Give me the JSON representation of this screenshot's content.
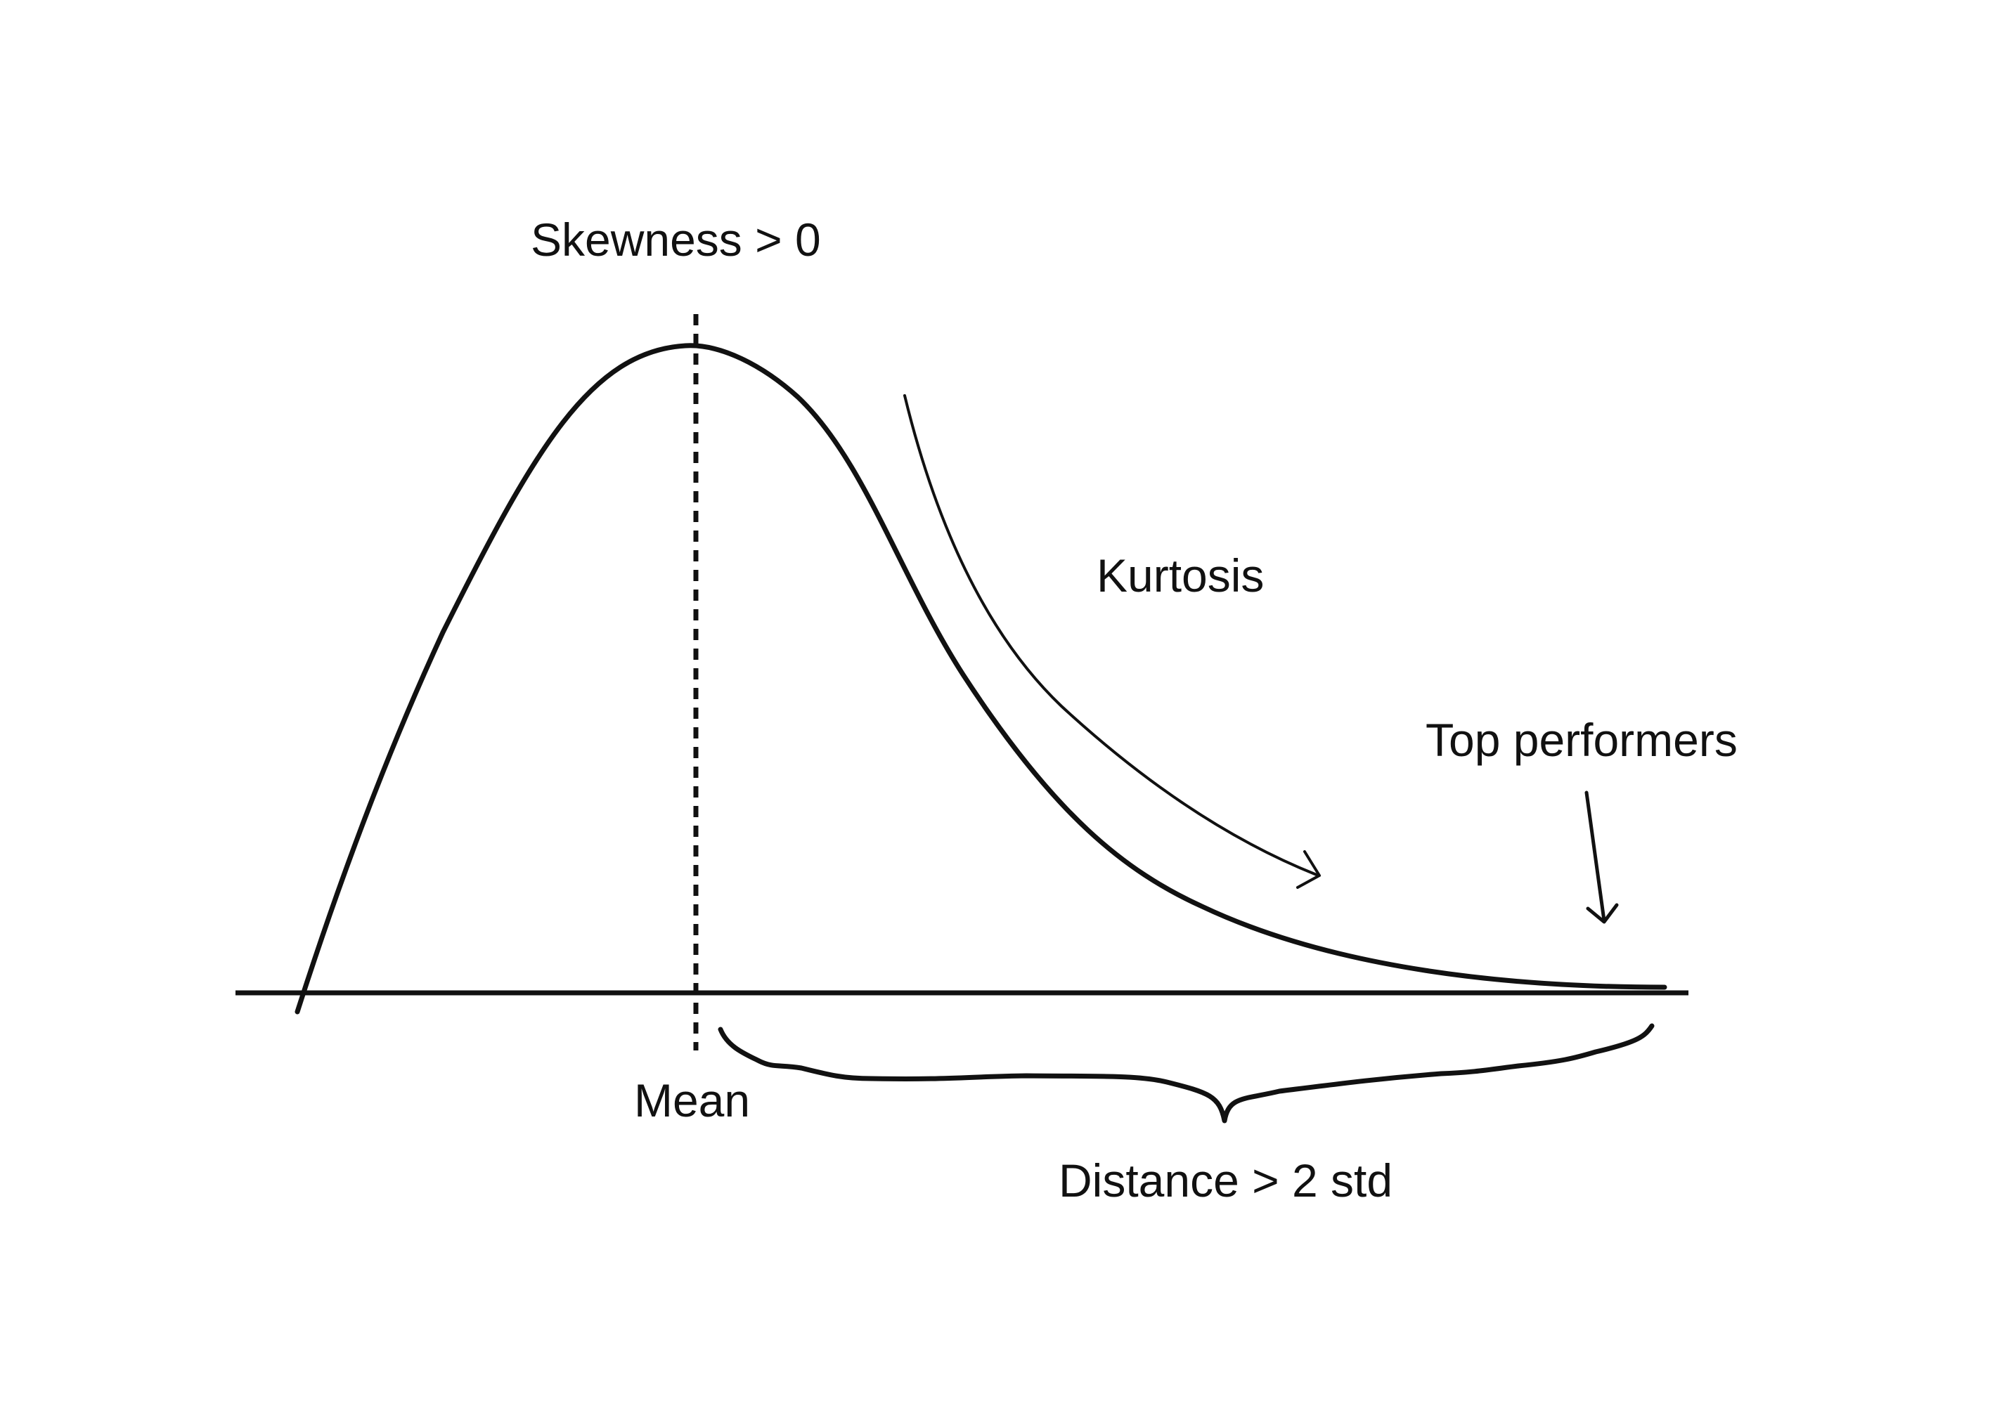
{
  "diagram": {
    "labels": {
      "skewness": "Skewness > 0",
      "kurtosis": "Kurtosis",
      "top_performers": "Top performers",
      "mean": "Mean",
      "distance": "Distance > 2 std"
    },
    "colors": {
      "stroke": "#111111",
      "background": "#ffffff"
    }
  }
}
